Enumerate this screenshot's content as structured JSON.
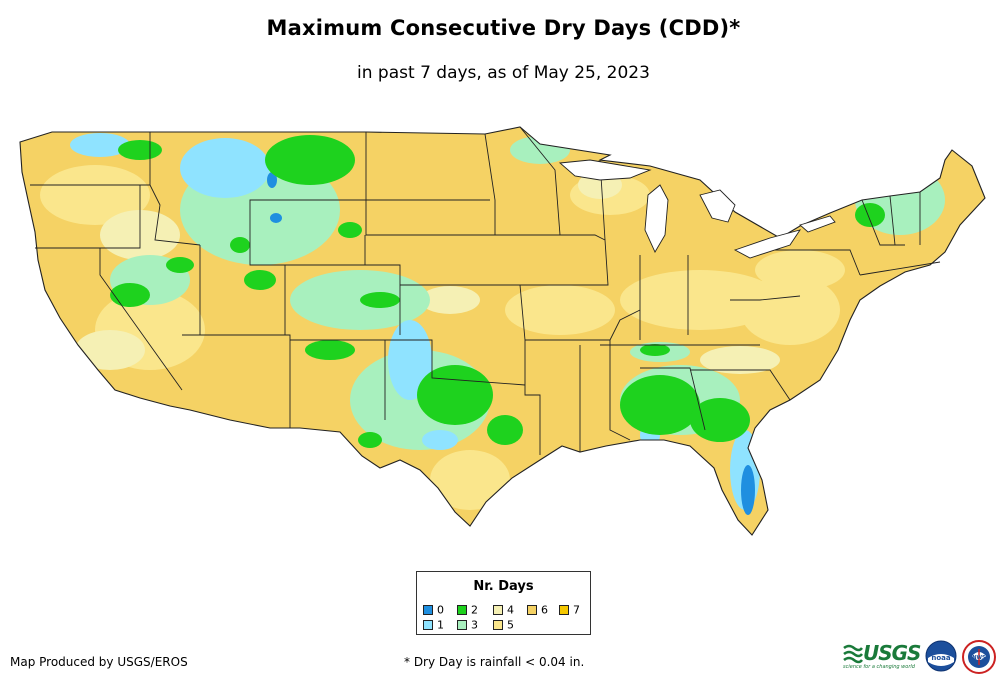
{
  "title": "Maximum Consecutive Dry Days (CDD)*",
  "subtitle": "in past 7 days, as of May 25, 2023",
  "legend": {
    "title": "Nr. Days",
    "items": [
      {
        "label": "0",
        "color": "#1f8fe0"
      },
      {
        "label": "1",
        "color": "#8fe3ff"
      },
      {
        "label": "2",
        "color": "#1ed21e"
      },
      {
        "label": "3",
        "color": "#a8f0be"
      },
      {
        "label": "4",
        "color": "#f5f0b4"
      },
      {
        "label": "5",
        "color": "#fae68c"
      },
      {
        "label": "6",
        "color": "#f5d264"
      },
      {
        "label": "7",
        "color": "#f5c800"
      }
    ]
  },
  "credit": "Map Produced by USGS/EROS",
  "footnote": "* Dry Day is rainfall < 0.04 in.",
  "logos": {
    "usgs": "USGS",
    "usgs_tagline": "science for a changing world",
    "noaa": "noaa",
    "nws": "NWS"
  }
}
